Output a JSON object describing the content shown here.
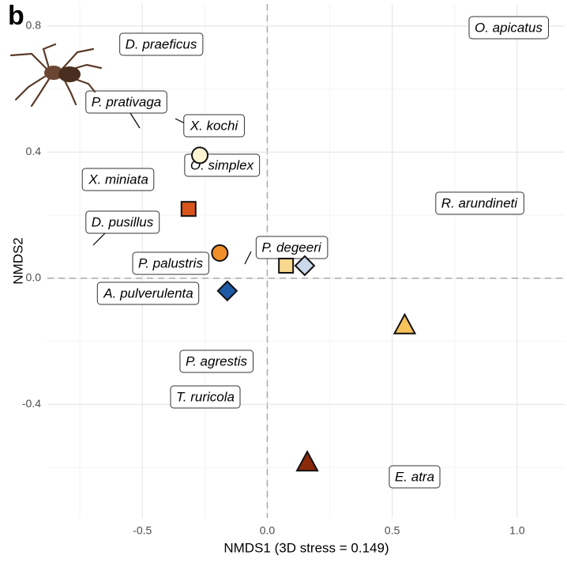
{
  "chart_data": {
    "type": "scatter",
    "panel_label": "b",
    "x_label": "NMDS1 (3D stress = 0.149)",
    "y_label": "NMDS2",
    "xlim": [
      -0.88,
      1.19
    ],
    "ylim": [
      -0.76,
      0.87
    ],
    "xticks": [
      -0.5,
      {
        "value": 0,
        "label": "0.0"
      },
      0.5,
      {
        "value": 1,
        "label": "1.0"
      }
    ],
    "yticks": [
      -0.4,
      {
        "value": 0,
        "label": "0.0"
      },
      0.4,
      0.8
    ],
    "minor_xticks": [
      -0.75,
      -0.25,
      0.25,
      0.75
    ],
    "minor_yticks": [
      -0.6,
      -0.2,
      0.2,
      0.6
    ],
    "grid": true,
    "zero_lines": true,
    "points": [
      {
        "x": -0.27,
        "y": 0.39,
        "shape": "circle",
        "color": "#fdf5d2"
      },
      {
        "x": -0.315,
        "y": 0.22,
        "shape": "square",
        "color": "#d9541a"
      },
      {
        "x": -0.19,
        "y": 0.08,
        "shape": "circle",
        "color": "#f0902c"
      },
      {
        "x": -0.16,
        "y": -0.04,
        "shape": "diamond",
        "color": "#1f5aa6"
      },
      {
        "x": 0.075,
        "y": 0.04,
        "shape": "square",
        "color": "#f8d98e"
      },
      {
        "x": 0.15,
        "y": 0.04,
        "shape": "diamond",
        "color": "#c9d8ea"
      },
      {
        "x": 0.55,
        "y": -0.15,
        "shape": "triangle",
        "color": "#f7c35a"
      },
      {
        "x": 0.16,
        "y": -0.585,
        "shape": "triangle",
        "color": "#8b2a0a"
      }
    ],
    "annotations": [
      "D. praeficus",
      "O. apicatus",
      "P. prativaga",
      "X. kochi",
      "O. simplex",
      "X. miniata",
      "R. arundineti",
      "D. pusillus",
      "P. degeeri",
      "P. palustris",
      "A. pulverulenta",
      "P. agrestis",
      "T. ruricola",
      "E. atra"
    ]
  }
}
